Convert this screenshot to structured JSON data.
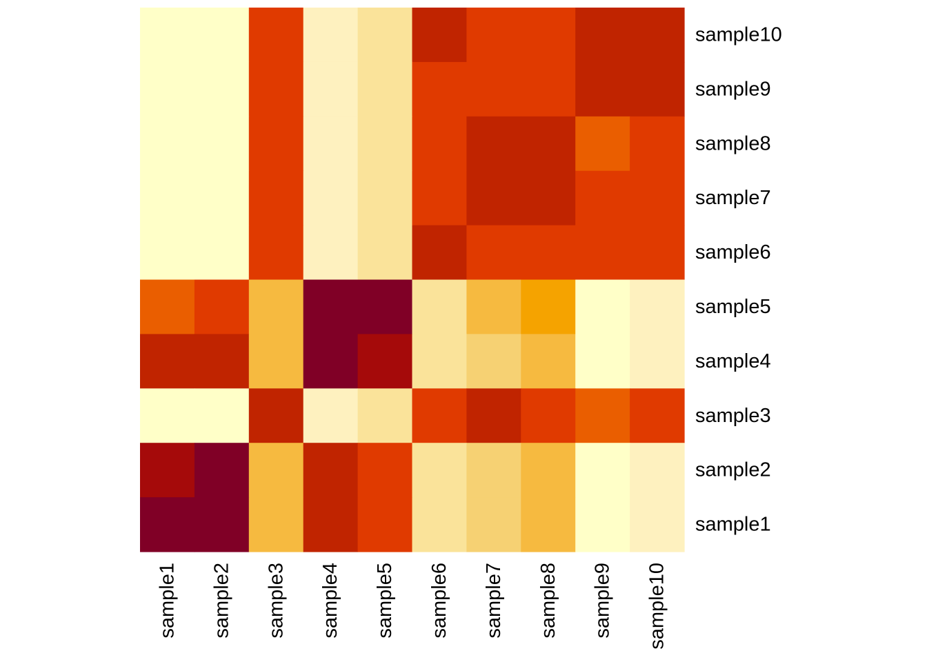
{
  "chart_data": {
    "type": "heatmap",
    "title": "",
    "xlabel": "",
    "ylabel": "",
    "x": [
      "sample1",
      "sample2",
      "sample3",
      "sample4",
      "sample5",
      "sample6",
      "sample7",
      "sample8",
      "sample9",
      "sample10"
    ],
    "y": [
      "sample10",
      "sample9",
      "sample8",
      "sample7",
      "sample6",
      "sample5",
      "sample4",
      "sample3",
      "sample2",
      "sample1"
    ],
    "palette": [
      "#800026",
      "#A50A0A",
      "#C02400",
      "#E03A00",
      "#EA5E00",
      "#F5A300",
      "#F6BA40",
      "#F6D173",
      "#FAE39A",
      "#FEF1BF",
      "#FFFFC8"
    ],
    "values": [
      [
        10,
        10,
        3,
        9,
        8,
        2,
        3,
        3,
        2,
        2
      ],
      [
        10,
        10,
        3,
        9,
        8,
        3,
        3,
        3,
        2,
        2
      ],
      [
        10,
        10,
        3,
        9,
        8,
        3,
        2,
        2,
        4,
        3
      ],
      [
        10,
        10,
        3,
        9,
        8,
        3,
        2,
        2,
        3,
        3
      ],
      [
        10,
        10,
        3,
        9,
        8,
        2,
        3,
        3,
        3,
        3
      ],
      [
        4,
        3,
        6,
        0,
        0,
        8,
        6,
        5,
        10,
        9
      ],
      [
        2,
        2,
        6,
        0,
        1,
        8,
        7,
        6,
        10,
        9
      ],
      [
        10,
        10,
        2,
        9,
        8,
        3,
        2,
        3,
        4,
        3
      ],
      [
        1,
        0,
        6,
        2,
        3,
        8,
        7,
        6,
        10,
        9
      ],
      [
        0,
        0,
        6,
        2,
        3,
        8,
        7,
        6,
        10,
        9
      ]
    ],
    "color_legend": "none",
    "grid": false
  }
}
